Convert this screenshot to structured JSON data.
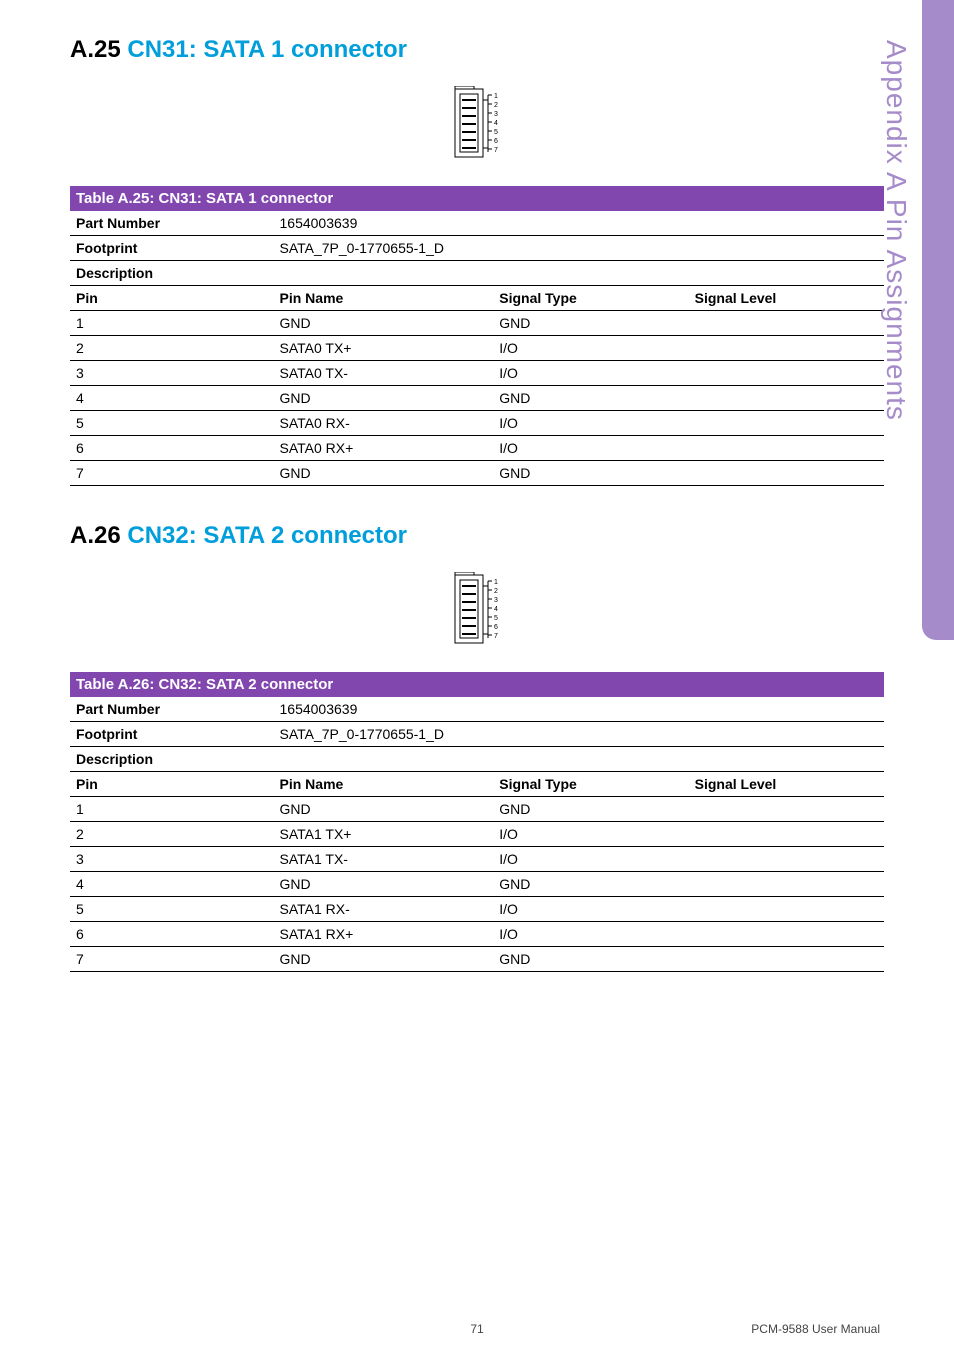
{
  "sideTab": {
    "text": "Appendix A   Pin Assignments",
    "bgColor": "#a58bc9",
    "textColor": "#a58bc9"
  },
  "sections": [
    {
      "id": "s25",
      "prefix": "A.25",
      "title": "CN31: SATA 1 connector",
      "tableTitle": "Table A.25: CN31: SATA 1 connector",
      "partNumberLabel": "Part Number",
      "partNumber": "1654003639",
      "footprintLabel": "Footprint",
      "footprint": "SATA_7P_0-1770655-1_D",
      "descriptionLabel": "Description",
      "colHeaders": {
        "pin": "Pin",
        "pinName": "Pin Name",
        "sigType": "Signal Type",
        "sigLevel": "Signal Level"
      },
      "rows": [
        {
          "pin": "1",
          "name": "GND",
          "type": "GND",
          "level": ""
        },
        {
          "pin": "2",
          "name": "SATA0 TX+",
          "type": "I/O",
          "level": ""
        },
        {
          "pin": "3",
          "name": "SATA0 TX-",
          "type": "I/O",
          "level": ""
        },
        {
          "pin": "4",
          "name": "GND",
          "type": "GND",
          "level": ""
        },
        {
          "pin": "5",
          "name": "SATA0 RX-",
          "type": "I/O",
          "level": ""
        },
        {
          "pin": "6",
          "name": "SATA0 RX+",
          "type": "I/O",
          "level": ""
        },
        {
          "pin": "7",
          "name": "GND",
          "type": "GND",
          "level": ""
        }
      ]
    },
    {
      "id": "s26",
      "prefix": "A.26",
      "title": "CN32: SATA 2 connector",
      "tableTitle": "Table A.26: CN32: SATA 2 connector",
      "partNumberLabel": "Part Number",
      "partNumber": "1654003639",
      "footprintLabel": "Footprint",
      "footprint": "SATA_7P_0-1770655-1_D",
      "descriptionLabel": "Description",
      "colHeaders": {
        "pin": "Pin",
        "pinName": "Pin Name",
        "sigType": "Signal Type",
        "sigLevel": "Signal Level"
      },
      "rows": [
        {
          "pin": "1",
          "name": "GND",
          "type": "GND",
          "level": ""
        },
        {
          "pin": "2",
          "name": "SATA1 TX+",
          "type": "I/O",
          "level": ""
        },
        {
          "pin": "3",
          "name": "SATA1 TX-",
          "type": "I/O",
          "level": ""
        },
        {
          "pin": "4",
          "name": "GND",
          "type": "GND",
          "level": ""
        },
        {
          "pin": "5",
          "name": "SATA1 RX-",
          "type": "I/O",
          "level": ""
        },
        {
          "pin": "6",
          "name": "SATA1 RX+",
          "type": "I/O",
          "level": ""
        },
        {
          "pin": "7",
          "name": "GND",
          "type": "GND",
          "level": ""
        }
      ]
    }
  ],
  "footer": {
    "pageNumber": "71",
    "manual": "PCM-9588 User Manual"
  },
  "connectorSvg": {
    "width": 46,
    "height": 74,
    "stroke": "#000000",
    "pinLabels": [
      "1",
      "2",
      "3",
      "4",
      "5",
      "6",
      "7"
    ]
  }
}
